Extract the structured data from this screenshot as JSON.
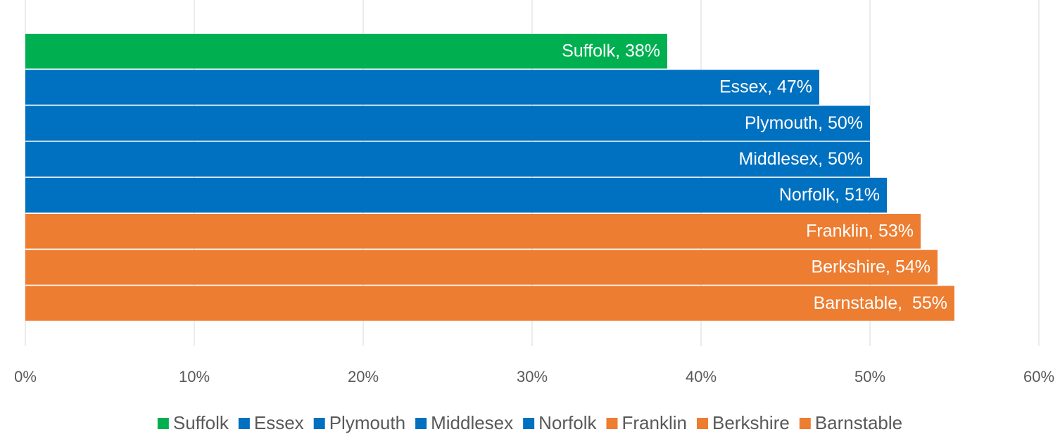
{
  "chart_data": {
    "type": "bar",
    "orientation": "horizontal",
    "series": [
      {
        "name": "Suffolk",
        "color": "#00b050",
        "values": [
          38
        ],
        "value_labels": [
          "Suffolk, 38%"
        ]
      },
      {
        "name": "Essex",
        "color": "#0070c0",
        "values": [
          47
        ],
        "value_labels": [
          "Essex, 47%"
        ]
      },
      {
        "name": "Plymouth",
        "color": "#0070c0",
        "values": [
          50
        ],
        "value_labels": [
          "Plymouth, 50%"
        ]
      },
      {
        "name": "Middlesex",
        "color": "#0070c0",
        "values": [
          50
        ],
        "value_labels": [
          "Middlesex, 50%"
        ]
      },
      {
        "name": "Norfolk",
        "color": "#0070c0",
        "values": [
          51
        ],
        "value_labels": [
          "Norfolk, 51%"
        ]
      },
      {
        "name": "Franklin",
        "color": "#ed7d31",
        "values": [
          53
        ],
        "value_labels": [
          "Franklin, 53%"
        ]
      },
      {
        "name": "Berkshire",
        "color": "#ed7d31",
        "values": [
          54
        ],
        "value_labels": [
          "Berkshire, 54%"
        ]
      },
      {
        "name": "Barnstable",
        "color": "#ed7d31",
        "values": [
          55
        ],
        "value_labels": [
          "Barnstable,  55%"
        ]
      }
    ],
    "xlim": [
      0,
      60
    ],
    "xticks": [
      {
        "value": 0,
        "label": "0%"
      },
      {
        "value": 10,
        "label": "10%"
      },
      {
        "value": 20,
        "label": "20%"
      },
      {
        "value": 30,
        "label": "30%"
      },
      {
        "value": 40,
        "label": "40%"
      },
      {
        "value": 50,
        "label": "50%"
      },
      {
        "value": 60,
        "label": "60%"
      }
    ],
    "grid": true,
    "legend": "bottom"
  }
}
